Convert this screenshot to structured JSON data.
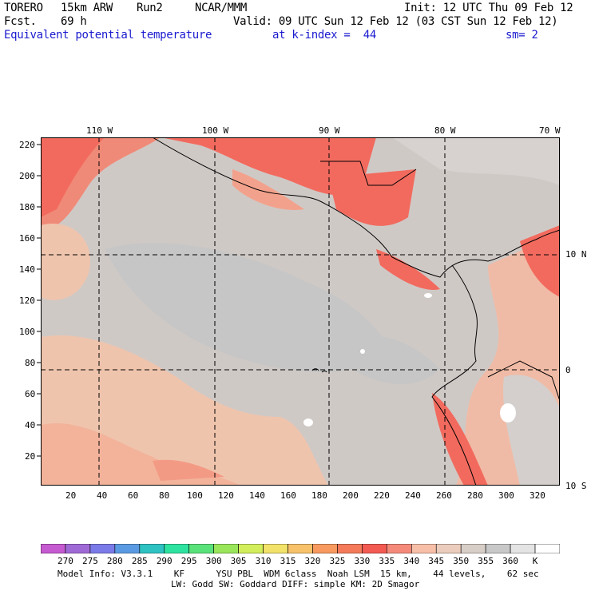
{
  "header": {
    "model": "TORERO",
    "resolution": "15km ARW",
    "run": "Run2",
    "org": "NCAR/MMM",
    "init": "Init: 12 UTC Thu 09 Feb 12",
    "fcst_label": "Fcst.",
    "fcst_hours": "69 h",
    "valid": "Valid: 09 UTC Sun 12 Feb 12 (03 CST Sun 12 Feb 12)",
    "field": "Equivalent potential temperature",
    "level": "at k-index =  44",
    "smoothing": "sm= 2"
  },
  "axes": {
    "top_lon": [
      "110 W",
      "100 W",
      "90 W",
      "80 W",
      "70 W"
    ],
    "right_lat": [
      "10 N",
      "0",
      "10 S"
    ],
    "left_y": [
      "220",
      "200",
      "180",
      "160",
      "140",
      "120",
      "100",
      "80",
      "60",
      "40",
      "20"
    ],
    "bottom_x": [
      "20",
      "40",
      "60",
      "80",
      "100",
      "120",
      "140",
      "160",
      "180",
      "200",
      "220",
      "240",
      "260",
      "280",
      "300",
      "320"
    ]
  },
  "colorbar": {
    "colors": [
      "#c65ad0",
      "#a06ad6",
      "#7a7ae8",
      "#5a9ae2",
      "#2ec2c2",
      "#2ee2a0",
      "#5ae27a",
      "#9ae65a",
      "#d2ee5a",
      "#f2e26a",
      "#f8c26a",
      "#f89a60",
      "#f47a5a",
      "#f25a52",
      "#f68a7a",
      "#f8bfa8",
      "#ecccbc",
      "#d8cec8",
      "#c8c8c8",
      "#e4e4e4",
      "#ffffff"
    ],
    "labels": [
      "270",
      "275",
      "280",
      "285",
      "290",
      "295",
      "300",
      "305",
      "310",
      "315",
      "320",
      "325",
      "330",
      "335",
      "340",
      "345",
      "350",
      "355",
      "360",
      "K"
    ]
  },
  "footer": {
    "line1": "Model Info: V3.3.1    KF      YSU PBL  WDM 6class  Noah LSM  15 km,    44 levels,    62 sec",
    "line2": "LW: Godd SW: Goddard DIFF: simple KM: 2D Smagor"
  }
}
